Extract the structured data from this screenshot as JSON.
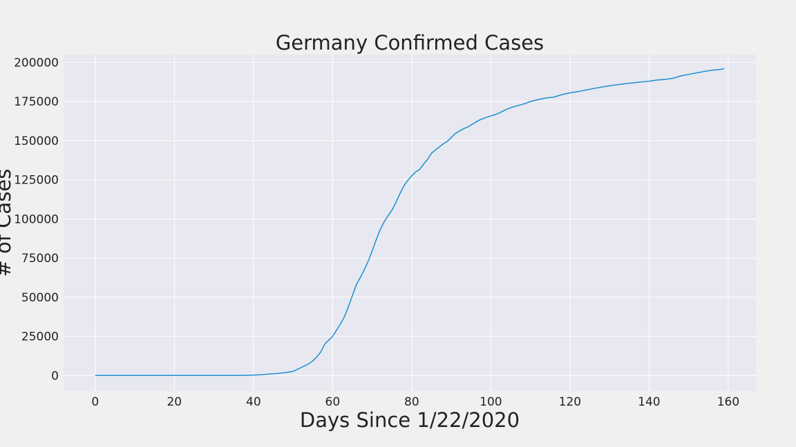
{
  "chart_data": {
    "type": "line",
    "title": "Germany Confirmed Cases",
    "xlabel": "Days Since 1/22/2020",
    "ylabel": "# of Cases",
    "xlim": [
      -8,
      167
    ],
    "ylim": [
      -10000,
      205000
    ],
    "grid": true,
    "x_ticks": [
      0,
      20,
      40,
      60,
      80,
      100,
      120,
      140,
      160
    ],
    "x_tick_labels": [
      "0",
      "20",
      "40",
      "60",
      "80",
      "100",
      "120",
      "140",
      "160"
    ],
    "y_ticks": [
      0,
      25000,
      50000,
      75000,
      100000,
      125000,
      150000,
      175000,
      200000
    ],
    "y_tick_labels": [
      "0",
      "25000",
      "50000",
      "75000",
      "100000",
      "125000",
      "150000",
      "175000",
      "200000"
    ],
    "colors": {
      "line": "#1a8fd0",
      "plot_bg": "#e8e8f0",
      "grid": "#ffffff",
      "figure_bg": "#f0f0f0"
    },
    "series": [
      {
        "x": [
          0,
          10,
          20,
          30,
          35,
          38,
          40,
          42,
          44,
          46,
          48,
          49,
          50,
          51,
          52,
          53,
          54,
          55,
          56,
          57,
          58,
          59,
          60,
          61,
          62,
          63,
          64,
          65,
          66,
          67,
          68,
          69,
          70,
          71,
          72,
          73,
          74,
          75,
          76,
          77,
          78,
          79,
          80,
          81,
          82,
          83,
          84,
          85,
          86,
          87,
          88,
          89,
          90,
          91,
          92,
          93,
          94,
          95,
          96,
          97,
          98,
          99,
          100,
          101,
          102,
          103,
          104,
          105,
          106,
          107,
          108,
          109,
          110,
          112,
          114,
          116,
          117,
          118,
          120,
          122,
          124,
          126,
          128,
          130,
          132,
          134,
          136,
          138,
          140,
          141,
          142,
          144,
          146,
          147,
          148,
          150,
          152,
          154,
          156,
          158,
          159
        ],
        "y": [
          0,
          0,
          0,
          0,
          30,
          100,
          200,
          500,
          900,
          1300,
          1800,
          2200,
          2600,
          3800,
          5000,
          6200,
          7500,
          9300,
          11800,
          15000,
          20000,
          22500,
          25000,
          29000,
          33000,
          37500,
          44000,
          51000,
          58000,
          62500,
          67500,
          73000,
          79500,
          86500,
          93000,
          98000,
          102000,
          105500,
          110500,
          116000,
          121000,
          124500,
          127500,
          130000,
          131500,
          135000,
          138000,
          142000,
          144000,
          146000,
          148000,
          149500,
          152000,
          154500,
          156000,
          157500,
          158500,
          160000,
          161500,
          163000,
          164000,
          165000,
          165800,
          166500,
          167500,
          168800,
          170000,
          171000,
          171800,
          172500,
          173200,
          174000,
          175000,
          176200,
          177300,
          177800,
          178600,
          179400,
          180500,
          181300,
          182300,
          183300,
          184200,
          185000,
          185700,
          186400,
          186900,
          187500,
          187900,
          188300,
          188700,
          189100,
          189800,
          190500,
          191300,
          192300,
          193300,
          194200,
          195000,
          195500,
          196000
        ]
      }
    ]
  }
}
